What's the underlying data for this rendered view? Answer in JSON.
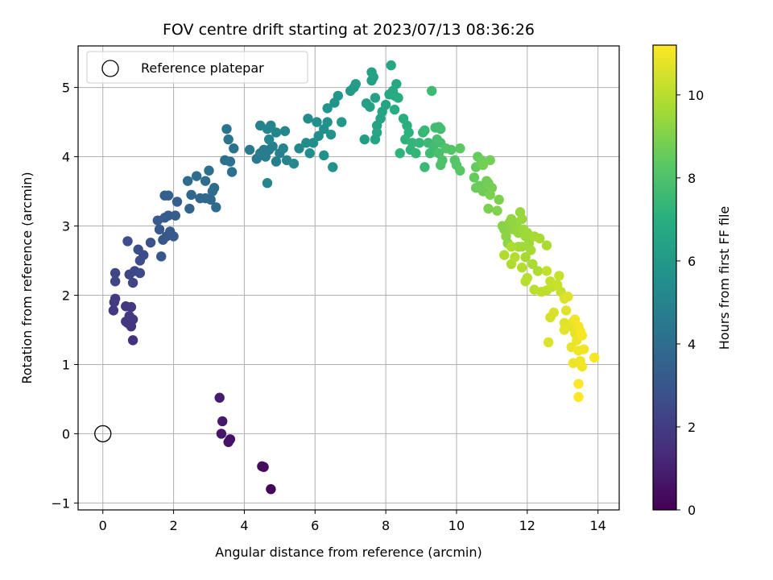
{
  "chart_data": {
    "type": "scatter",
    "title": "FOV centre drift starting at 2023/07/13 08:36:26",
    "xlabel": "Angular distance from reference (arcmin)",
    "ylabel": "Rotation from reference (arcmin)",
    "xlim": [
      -0.7,
      14.6
    ],
    "ylim": [
      -1.1,
      5.6
    ],
    "x_ticks": [
      "0",
      "2",
      "4",
      "6",
      "8",
      "10",
      "12",
      "14"
    ],
    "y_ticks": [
      "−1",
      "0",
      "1",
      "2",
      "3",
      "4",
      "5"
    ],
    "grid": true,
    "legend": {
      "position": "top-left",
      "entries": [
        "Reference platepar"
      ]
    },
    "reference_point": {
      "x": 0,
      "y": 0
    },
    "colorbar": {
      "label": "Hours from first FF file",
      "colormap": "viridis",
      "range": [
        0,
        11.2
      ],
      "ticks": [
        "0",
        "2",
        "4",
        "6",
        "8",
        "10"
      ]
    },
    "points": [
      [
        4.75,
        -0.8,
        0.1
      ],
      [
        4.55,
        -0.48,
        0.3
      ],
      [
        4.5,
        -0.47,
        0.35
      ],
      [
        3.55,
        -0.12,
        0.5
      ],
      [
        3.6,
        -0.08,
        0.55
      ],
      [
        3.35,
        0.0,
        0.7
      ],
      [
        3.38,
        0.18,
        0.75
      ],
      [
        3.3,
        0.52,
        0.9
      ],
      [
        0.85,
        1.35,
        1.6
      ],
      [
        0.8,
        1.55,
        1.7
      ],
      [
        0.7,
        1.6,
        1.7
      ],
      [
        0.85,
        1.65,
        1.75
      ],
      [
        0.65,
        1.62,
        1.75
      ],
      [
        0.75,
        1.7,
        1.8
      ],
      [
        0.8,
        1.83,
        1.8
      ],
      [
        0.65,
        1.84,
        1.8
      ],
      [
        0.3,
        1.78,
        1.85
      ],
      [
        0.32,
        1.9,
        1.9
      ],
      [
        0.35,
        1.95,
        1.9
      ],
      [
        0.85,
        2.18,
        2.3
      ],
      [
        0.35,
        2.2,
        2.3
      ],
      [
        0.35,
        2.32,
        2.35
      ],
      [
        0.75,
        2.3,
        2.4
      ],
      [
        0.9,
        2.35,
        2.4
      ],
      [
        1.05,
        2.32,
        2.5
      ],
      [
        1.05,
        2.5,
        2.6
      ],
      [
        1.15,
        2.58,
        2.6
      ],
      [
        1.0,
        2.66,
        2.65
      ],
      [
        0.7,
        2.78,
        2.7
      ],
      [
        1.35,
        2.76,
        2.9
      ],
      [
        1.65,
        2.56,
        3.0
      ],
      [
        1.7,
        2.8,
        3.0
      ],
      [
        1.8,
        2.85,
        3.05
      ],
      [
        2.0,
        2.85,
        3.1
      ],
      [
        1.6,
        2.95,
        3.1
      ],
      [
        1.9,
        2.92,
        3.15
      ],
      [
        1.55,
        3.08,
        3.2
      ],
      [
        1.75,
        3.12,
        3.2
      ],
      [
        1.85,
        3.15,
        3.25
      ],
      [
        2.05,
        3.15,
        3.3
      ],
      [
        2.1,
        3.35,
        3.4
      ],
      [
        1.75,
        3.44,
        3.4
      ],
      [
        1.85,
        3.44,
        3.45
      ],
      [
        2.45,
        3.25,
        3.6
      ],
      [
        2.5,
        3.45,
        3.7
      ],
      [
        2.75,
        3.4,
        3.7
      ],
      [
        2.9,
        3.4,
        3.8
      ],
      [
        3.05,
        3.38,
        3.8
      ],
      [
        3.1,
        3.5,
        3.9
      ],
      [
        3.15,
        3.55,
        3.9
      ],
      [
        3.2,
        3.27,
        3.9
      ],
      [
        2.4,
        3.65,
        3.9
      ],
      [
        2.65,
        3.72,
        3.95
      ],
      [
        2.9,
        3.65,
        4.0
      ],
      [
        3.0,
        3.8,
        4.05
      ],
      [
        3.45,
        3.95,
        4.1
      ],
      [
        3.6,
        3.93,
        4.15
      ],
      [
        3.65,
        3.78,
        4.2
      ],
      [
        3.7,
        4.12,
        4.25
      ],
      [
        3.55,
        4.25,
        4.3
      ],
      [
        3.5,
        4.4,
        4.3
      ],
      [
        4.15,
        4.1,
        4.5
      ],
      [
        4.35,
        3.97,
        4.5
      ],
      [
        4.45,
        4.05,
        4.6
      ],
      [
        4.55,
        4.1,
        4.6
      ],
      [
        4.6,
        4.0,
        4.65
      ],
      [
        4.7,
        4.1,
        4.7
      ],
      [
        4.8,
        4.15,
        4.75
      ],
      [
        4.9,
        3.93,
        4.8
      ],
      [
        5.0,
        4.05,
        4.85
      ],
      [
        5.1,
        4.12,
        4.9
      ],
      [
        5.2,
        3.95,
        4.95
      ],
      [
        4.45,
        4.45,
        4.9
      ],
      [
        4.65,
        4.4,
        5.0
      ],
      [
        4.75,
        4.45,
        5.0
      ],
      [
        4.9,
        4.35,
        5.05
      ],
      [
        5.15,
        4.37,
        5.1
      ],
      [
        4.7,
        4.25,
        5.05
      ],
      [
        4.65,
        3.62,
        5.1
      ],
      [
        5.4,
        3.9,
        5.2
      ],
      [
        5.55,
        4.12,
        5.3
      ],
      [
        5.75,
        4.2,
        5.35
      ],
      [
        5.85,
        4.05,
        5.4
      ],
      [
        5.95,
        4.2,
        5.45
      ],
      [
        6.1,
        4.3,
        5.5
      ],
      [
        5.8,
        4.55,
        5.4
      ],
      [
        6.05,
        4.5,
        5.5
      ],
      [
        6.25,
        4.4,
        5.55
      ],
      [
        6.35,
        4.5,
        5.6
      ],
      [
        6.25,
        4.02,
        5.6
      ],
      [
        6.5,
        3.85,
        5.7
      ],
      [
        6.45,
        4.32,
        5.7
      ],
      [
        6.35,
        4.7,
        5.75
      ],
      [
        6.55,
        4.78,
        5.8
      ],
      [
        6.65,
        4.88,
        5.85
      ],
      [
        6.75,
        4.5,
        5.9
      ],
      [
        7.0,
        4.95,
        6.05
      ],
      [
        7.1,
        5.0,
        6.1
      ],
      [
        7.15,
        5.05,
        6.15
      ],
      [
        7.4,
        4.25,
        6.2
      ],
      [
        7.45,
        4.77,
        6.25
      ],
      [
        7.55,
        4.72,
        6.3
      ],
      [
        7.6,
        5.1,
        6.3
      ],
      [
        7.65,
        5.15,
        6.35
      ],
      [
        7.6,
        5.22,
        6.35
      ],
      [
        7.7,
        4.85,
        6.4
      ],
      [
        7.75,
        4.45,
        6.4
      ],
      [
        7.85,
        4.55,
        6.45
      ],
      [
        7.7,
        4.25,
        6.45
      ],
      [
        7.75,
        4.35,
        6.5
      ],
      [
        7.9,
        4.65,
        6.5
      ],
      [
        8.0,
        4.75,
        6.55
      ],
      [
        8.1,
        4.9,
        6.6
      ],
      [
        8.15,
        5.32,
        6.65
      ],
      [
        8.3,
        5.05,
        6.7
      ],
      [
        8.2,
        4.95,
        6.75
      ],
      [
        8.25,
        4.88,
        6.8
      ],
      [
        8.35,
        4.85,
        6.85
      ],
      [
        8.25,
        4.68,
        6.9
      ],
      [
        8.5,
        4.55,
        7.0
      ],
      [
        8.6,
        4.45,
        7.05
      ],
      [
        8.65,
        4.35,
        7.1
      ],
      [
        8.55,
        4.25,
        7.15
      ],
      [
        8.4,
        4.05,
        7.2
      ],
      [
        8.7,
        4.1,
        7.25
      ],
      [
        8.75,
        4.2,
        7.3
      ],
      [
        8.85,
        4.05,
        7.35
      ],
      [
        8.95,
        4.2,
        7.35
      ],
      [
        9.05,
        4.35,
        7.4
      ],
      [
        9.1,
        4.38,
        7.45
      ],
      [
        9.2,
        4.2,
        7.5
      ],
      [
        9.1,
        3.85,
        7.5
      ],
      [
        9.3,
        4.95,
        7.55
      ],
      [
        9.25,
        4.05,
        7.6
      ],
      [
        9.35,
        4.15,
        7.65
      ],
      [
        9.4,
        4.42,
        7.7
      ],
      [
        9.5,
        4.43,
        7.7
      ],
      [
        9.55,
        4.4,
        7.75
      ],
      [
        9.45,
        4.25,
        7.8
      ],
      [
        9.55,
        4.2,
        7.85
      ],
      [
        9.5,
        4.05,
        7.9
      ],
      [
        9.6,
        3.95,
        7.95
      ],
      [
        9.55,
        3.88,
        8.0
      ],
      [
        9.7,
        4.12,
        8.05
      ],
      [
        9.85,
        4.1,
        8.1
      ],
      [
        9.95,
        3.95,
        8.15
      ],
      [
        10.0,
        3.88,
        8.2
      ],
      [
        10.1,
        3.8,
        8.25
      ],
      [
        10.1,
        4.12,
        8.3
      ],
      [
        10.5,
        3.7,
        8.5
      ],
      [
        10.55,
        3.85,
        8.5
      ],
      [
        10.6,
        4.0,
        8.55
      ],
      [
        10.7,
        3.95,
        8.6
      ],
      [
        10.55,
        3.55,
        8.6
      ],
      [
        10.65,
        3.58,
        8.65
      ],
      [
        10.75,
        3.5,
        8.7
      ],
      [
        10.85,
        3.65,
        8.7
      ],
      [
        10.9,
        3.62,
        8.75
      ],
      [
        10.95,
        3.95,
        8.75
      ],
      [
        10.75,
        3.88,
        8.8
      ],
      [
        11.0,
        3.55,
        8.85
      ],
      [
        10.95,
        3.45,
        8.9
      ],
      [
        10.9,
        3.25,
        8.9
      ],
      [
        11.2,
        3.38,
        8.95
      ],
      [
        11.15,
        3.22,
        9.0
      ],
      [
        11.3,
        3.0,
        9.1
      ],
      [
        11.35,
        2.95,
        9.15
      ],
      [
        11.4,
        2.85,
        9.2
      ],
      [
        11.45,
        2.75,
        9.2
      ],
      [
        11.5,
        3.05,
        9.25
      ],
      [
        11.55,
        3.1,
        9.3
      ],
      [
        11.6,
        2.95,
        9.3
      ],
      [
        11.65,
        3.05,
        9.35
      ],
      [
        11.7,
        3.0,
        9.35
      ],
      [
        11.75,
        2.9,
        9.4
      ],
      [
        11.8,
        3.2,
        9.4
      ],
      [
        11.85,
        3.1,
        9.45
      ],
      [
        11.9,
        2.95,
        9.5
      ],
      [
        11.95,
        2.85,
        9.5
      ],
      [
        12.0,
        2.9,
        9.55
      ],
      [
        12.05,
        2.75,
        9.55
      ],
      [
        11.85,
        2.7,
        9.6
      ],
      [
        11.75,
        2.7,
        9.6
      ],
      [
        11.95,
        2.55,
        9.65
      ],
      [
        12.1,
        2.65,
        9.65
      ],
      [
        12.2,
        2.85,
        9.7
      ],
      [
        12.35,
        2.82,
        9.7
      ],
      [
        12.55,
        2.72,
        9.75
      ],
      [
        12.15,
        2.45,
        9.75
      ],
      [
        12.3,
        2.35,
        9.8
      ],
      [
        11.55,
        2.7,
        9.8
      ],
      [
        11.35,
        2.58,
        9.85
      ],
      [
        11.55,
        2.45,
        9.85
      ],
      [
        11.65,
        2.55,
        9.9
      ],
      [
        11.85,
        2.4,
        9.9
      ],
      [
        11.95,
        2.2,
        9.95
      ],
      [
        12.0,
        2.25,
        10.0
      ],
      [
        12.2,
        2.08,
        10.05
      ],
      [
        12.4,
        2.05,
        10.1
      ],
      [
        12.55,
        2.07,
        10.1
      ],
      [
        12.55,
        2.35,
        10.15
      ],
      [
        12.7,
        2.12,
        10.15
      ],
      [
        12.65,
        2.2,
        10.2
      ],
      [
        12.85,
        2.15,
        10.25
      ],
      [
        12.9,
        2.28,
        10.25
      ],
      [
        12.95,
        2.05,
        10.3
      ],
      [
        12.65,
        1.68,
        10.5
      ],
      [
        12.75,
        1.75,
        10.55
      ],
      [
        12.6,
        1.32,
        10.6
      ],
      [
        13.05,
        1.95,
        10.6
      ],
      [
        13.15,
        1.98,
        10.65
      ],
      [
        13.1,
        1.78,
        10.7
      ],
      [
        13.05,
        1.6,
        10.7
      ],
      [
        13.05,
        1.5,
        10.75
      ],
      [
        13.2,
        1.55,
        10.75
      ],
      [
        13.3,
        1.62,
        10.8
      ],
      [
        13.35,
        1.45,
        10.8
      ],
      [
        13.25,
        1.25,
        10.85
      ],
      [
        13.3,
        1.02,
        10.9
      ],
      [
        13.4,
        1.35,
        10.9
      ],
      [
        13.45,
        1.2,
        10.95
      ],
      [
        13.5,
        1.05,
        10.95
      ],
      [
        13.6,
        1.22,
        11.0
      ],
      [
        13.55,
        0.97,
        11.0
      ],
      [
        13.35,
        1.65,
        11.0
      ],
      [
        13.45,
        1.55,
        11.05
      ],
      [
        13.5,
        1.48,
        11.05
      ],
      [
        13.55,
        1.42,
        11.1
      ],
      [
        13.9,
        1.1,
        11.1
      ],
      [
        13.45,
        0.72,
        11.15
      ],
      [
        13.45,
        0.53,
        11.2
      ]
    ]
  }
}
